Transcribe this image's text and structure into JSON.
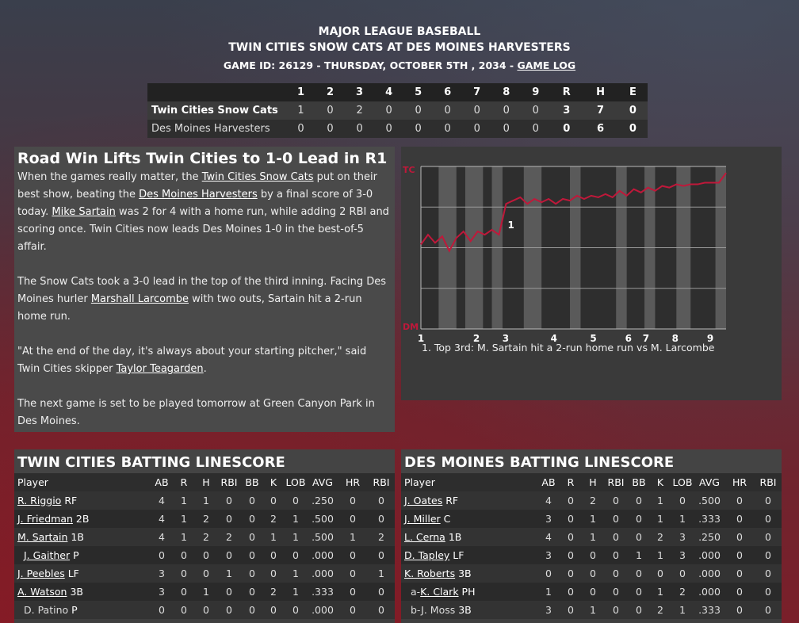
{
  "header": {
    "league": "MAJOR LEAGUE BASEBALL",
    "matchup": "TWIN CITIES SNOW CATS AT DES MOINES HARVESTERS",
    "game_info": "GAME ID: 26129 - THURSDAY, OCTOBER 5TH , 2034 - ",
    "game_log_link": "GAME LOG"
  },
  "linescore": {
    "columns": [
      "1",
      "2",
      "3",
      "4",
      "5",
      "6",
      "7",
      "8",
      "9",
      "R",
      "H",
      "E"
    ],
    "rows": [
      {
        "team": "Twin Cities Snow Cats",
        "vals": [
          "1",
          "0",
          "2",
          "0",
          "0",
          "0",
          "0",
          "0",
          "0",
          "3",
          "7",
          "0"
        ]
      },
      {
        "team": "Des Moines Harvesters",
        "vals": [
          "0",
          "0",
          "0",
          "0",
          "0",
          "0",
          "0",
          "0",
          "0",
          "0",
          "6",
          "0"
        ]
      }
    ]
  },
  "story": {
    "headline": "Road Win Lifts Twin Cities to 1-0 Lead in R1",
    "p1": {
      "t1": "When the games really matter, the ",
      "link1": "Twin Cities Snow Cats",
      "t2": " put on their best show, beating the ",
      "link2": "Des Moines Harvesters",
      "t3": " by a final score of 3-0 today. ",
      "link3": "Mike Sartain",
      "t4": " was 2 for 4 with a home run, while adding 2 RBI and scoring once. Twin Cities now leads Des Moines 1-0 in the best-of-5 affair."
    },
    "p2": {
      "t1": "The Snow Cats took a 3-0 lead in the top of the third inning. Facing Des Moines hurler ",
      "link1": "Marshall Larcombe",
      "t2": " with two outs, Sartain hit a 2-run home run."
    },
    "p3": {
      "t1": "\"At the end of the day, it's always about your starting pitcher,\" said Twin Cities skipper ",
      "link1": "Taylor Teagarden",
      "t2": "."
    },
    "p4": "The next game is set to be played tomorrow at Green Canyon Park in Des Moines."
  },
  "chart_data": {
    "type": "line",
    "title": "",
    "xlabel": "",
    "ylabel": "",
    "y_top_label": "TC",
    "y_bottom_label": "DM",
    "x_tick_labels": [
      "1",
      "2",
      "3",
      "4",
      "5",
      "6",
      "7",
      "8",
      "9"
    ],
    "ylim": [
      0,
      100
    ],
    "series": [
      {
        "color": "#c0183a",
        "x": [
          1,
          1.2,
          1.4,
          1.6,
          1.8,
          2,
          2.2,
          2.4,
          2.6,
          2.8,
          3,
          3.2,
          3.4,
          3.6,
          3.8,
          4,
          4.2,
          4.4,
          4.6,
          4.8,
          5,
          5.2,
          5.4,
          5.6,
          5.8,
          6,
          6.2,
          6.4,
          6.6,
          6.8,
          7,
          7.2,
          7.4,
          7.6,
          7.8,
          8,
          8.2,
          8.4,
          8.6,
          8.8,
          9,
          9.2,
          9.4,
          9.6
        ],
        "y": [
          52,
          58,
          53,
          57,
          48,
          56,
          60,
          54,
          60,
          58,
          61,
          58,
          77,
          79,
          81,
          77,
          80,
          78,
          80,
          77,
          80,
          79,
          82,
          80,
          82,
          81,
          83,
          81,
          85,
          82,
          86,
          84,
          87,
          85,
          88,
          87,
          89,
          88,
          89,
          89,
          90,
          90,
          90,
          96
        ]
      }
    ],
    "annotations": [
      {
        "label": "1",
        "x": 3.4,
        "y": 62,
        "text": "1. Top 3rd: M. Sartain hit a 2-run home run vs M. Larcombe"
      }
    ],
    "grid": true,
    "color": "#c0183a"
  },
  "tc_batting": {
    "title": "TWIN CITIES BATTING LINESCORE",
    "columns": [
      "Player",
      "AB",
      "R",
      "H",
      "RBI",
      "BB",
      "K",
      "LOB",
      "AVG",
      "HR",
      "RBI"
    ],
    "rows": [
      {
        "prefix": "",
        "name": "R. Riggio",
        "pos": " RF",
        "sub": false,
        "vals": [
          "4",
          "1",
          "1",
          "0",
          "0",
          "0",
          "0",
          ".250",
          "0",
          "0"
        ]
      },
      {
        "prefix": "",
        "name": "J. Friedman",
        "pos": " 2B",
        "sub": false,
        "vals": [
          "4",
          "1",
          "2",
          "0",
          "0",
          "2",
          "1",
          ".500",
          "0",
          "0"
        ]
      },
      {
        "prefix": "",
        "name": "M. Sartain",
        "pos": " 1B",
        "sub": false,
        "vals": [
          "4",
          "1",
          "2",
          "2",
          "0",
          "1",
          "1",
          ".500",
          "1",
          "2"
        ]
      },
      {
        "prefix": "",
        "name": "J. Gaither",
        "pos": " P",
        "sub": true,
        "vals": [
          "0",
          "0",
          "0",
          "0",
          "0",
          "0",
          "0",
          ".000",
          "0",
          "0"
        ]
      },
      {
        "prefix": "",
        "name": "J. Peebles",
        "pos": " LF",
        "sub": false,
        "vals": [
          "3",
          "0",
          "0",
          "1",
          "0",
          "0",
          "1",
          ".000",
          "0",
          "1"
        ]
      },
      {
        "prefix": "",
        "name": "A. Watson",
        "pos": " 3B",
        "sub": false,
        "vals": [
          "3",
          "0",
          "1",
          "0",
          "0",
          "2",
          "1",
          ".333",
          "0",
          "0"
        ]
      },
      {
        "prefix": "",
        "name": "D. Patino",
        "pos": " P",
        "sub": true,
        "plain": true,
        "vals": [
          "0",
          "0",
          "0",
          "0",
          "0",
          "0",
          "0",
          ".000",
          "0",
          "0"
        ]
      }
    ]
  },
  "dm_batting": {
    "title": "DES MOINES BATTING LINESCORE",
    "columns": [
      "Player",
      "AB",
      "R",
      "H",
      "RBI",
      "BB",
      "K",
      "LOB",
      "AVG",
      "HR",
      "RBI"
    ],
    "rows": [
      {
        "prefix": "",
        "name": "J. Oates",
        "pos": " RF",
        "sub": false,
        "vals": [
          "4",
          "0",
          "2",
          "0",
          "0",
          "1",
          "0",
          ".500",
          "0",
          "0"
        ]
      },
      {
        "prefix": "",
        "name": "J. Miller",
        "pos": " C",
        "sub": false,
        "vals": [
          "3",
          "0",
          "1",
          "0",
          "0",
          "1",
          "1",
          ".333",
          "0",
          "0"
        ]
      },
      {
        "prefix": "",
        "name": "L. Cerna",
        "pos": " 1B",
        "sub": false,
        "vals": [
          "4",
          "0",
          "1",
          "0",
          "0",
          "2",
          "3",
          ".250",
          "0",
          "0"
        ]
      },
      {
        "prefix": "",
        "name": "D. Tapley",
        "pos": " LF",
        "sub": false,
        "vals": [
          "3",
          "0",
          "0",
          "0",
          "1",
          "1",
          "3",
          ".000",
          "0",
          "0"
        ]
      },
      {
        "prefix": "",
        "name": "K. Roberts",
        "pos": " 3B",
        "sub": false,
        "vals": [
          "0",
          "0",
          "0",
          "0",
          "0",
          "0",
          "0",
          ".000",
          "0",
          "0"
        ]
      },
      {
        "prefix": "a-",
        "name": "K. Clark",
        "pos": " PH",
        "sub": true,
        "vals": [
          "1",
          "0",
          "0",
          "0",
          "0",
          "1",
          "2",
          ".000",
          "0",
          "0"
        ]
      },
      {
        "prefix": "b-",
        "name": "J. Moss",
        "pos": " 3B",
        "sub": true,
        "plain": true,
        "vals": [
          "3",
          "0",
          "1",
          "0",
          "0",
          "2",
          "1",
          ".333",
          "0",
          "0"
        ]
      }
    ]
  }
}
